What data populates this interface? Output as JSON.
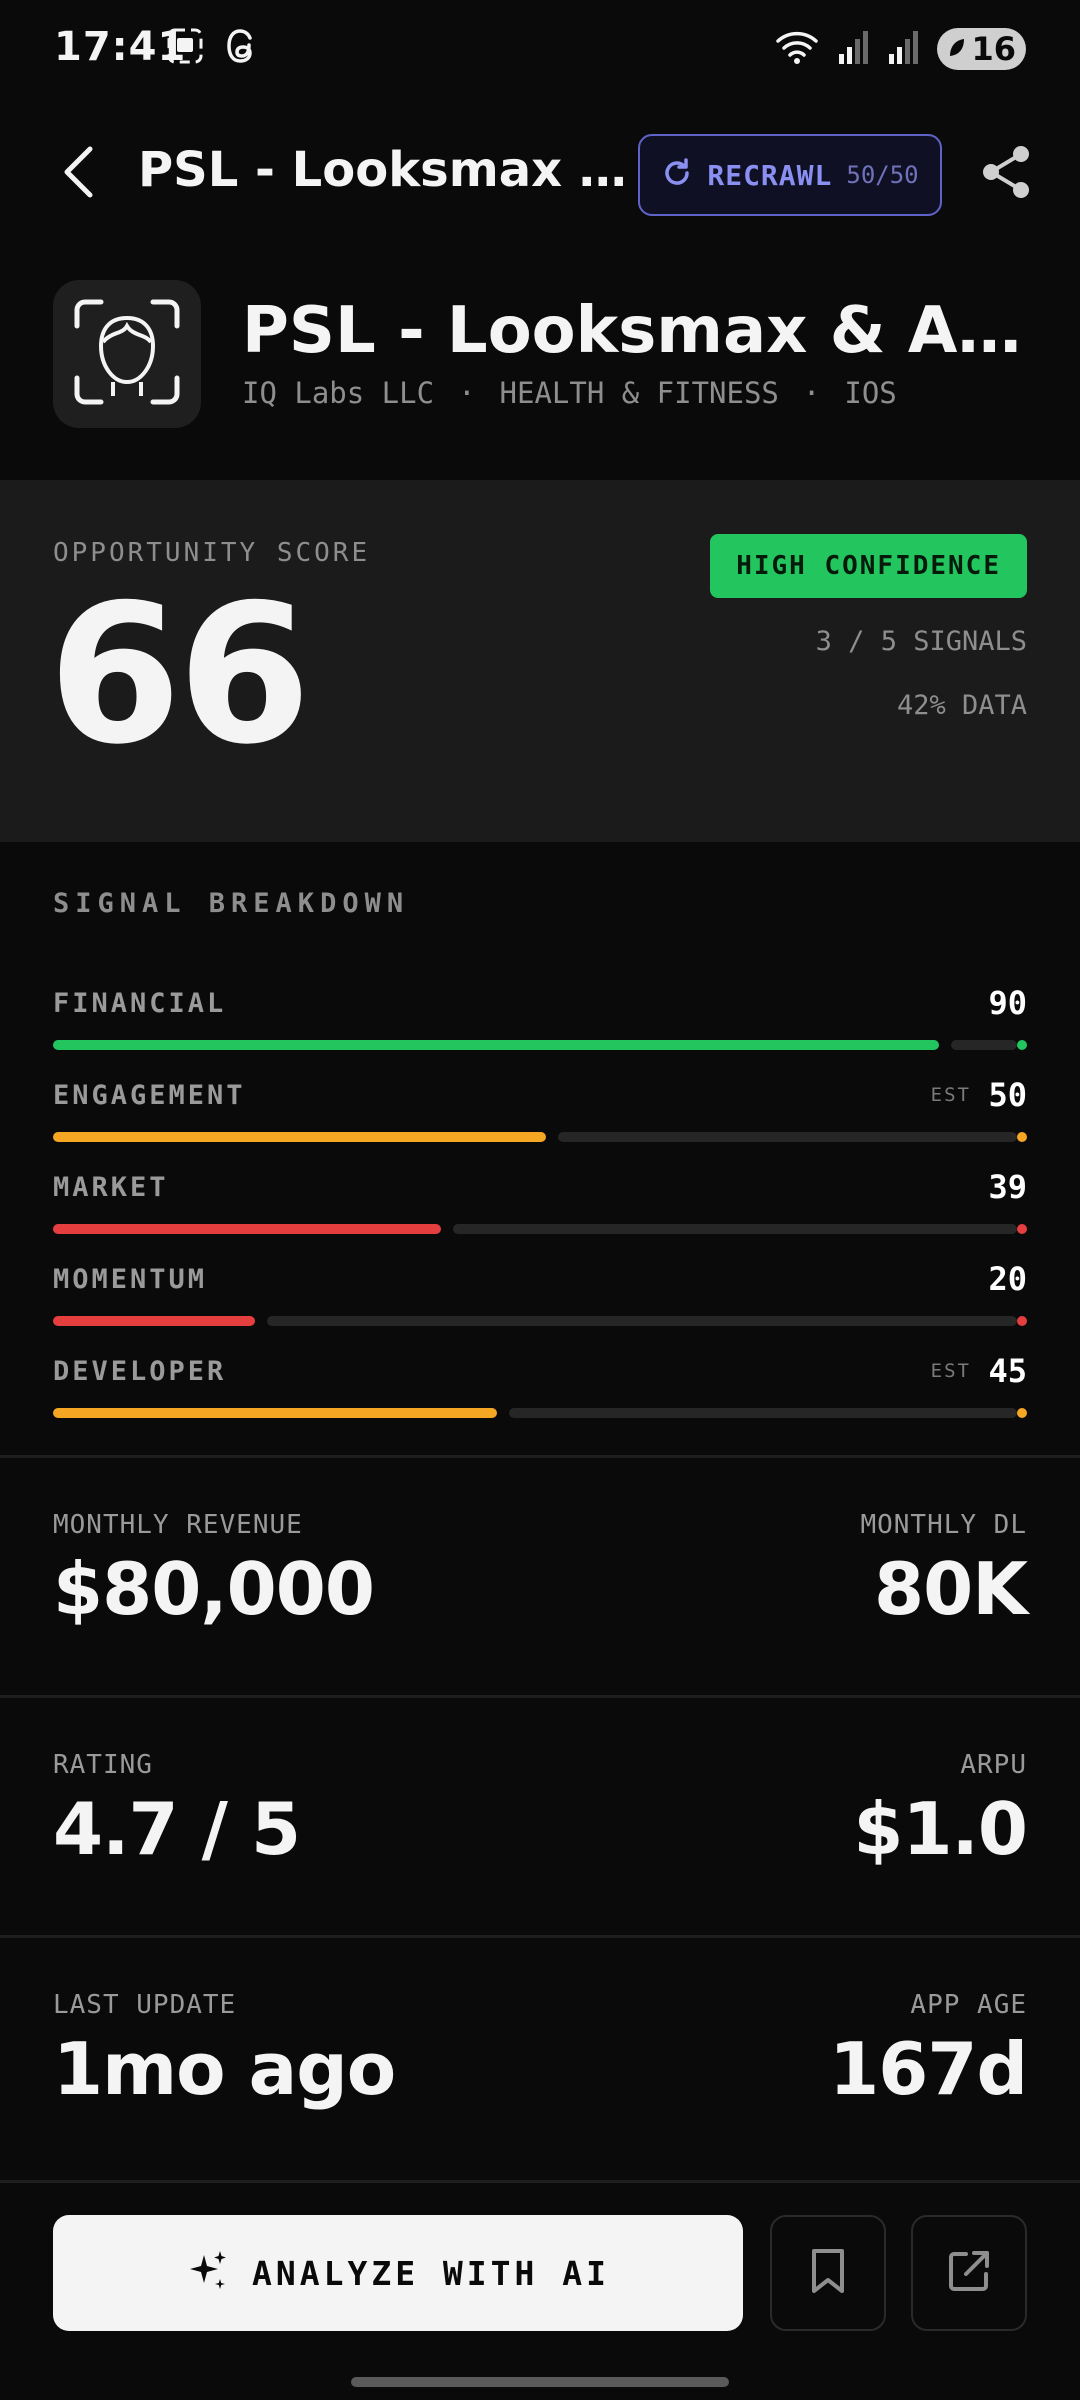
{
  "status_bar": {
    "time": "17:41",
    "battery": "16"
  },
  "app_bar": {
    "title": "PSL - Looksmax & ...",
    "recrawl_label": "RECRAWL",
    "recrawl_count": "50/50"
  },
  "app": {
    "name": "PSL - Looksmax & Asce...",
    "developer": "IQ Labs LLC",
    "separator": "·",
    "category": "HEALTH & FITNESS",
    "platform": "IOS"
  },
  "opportunity": {
    "label": "OPPORTUNITY SCORE",
    "score": "66",
    "confidence": "HIGH CONFIDENCE",
    "signals": "3 / 5 SIGNALS",
    "data": "42% DATA"
  },
  "breakdown": {
    "title": "SIGNAL BREAKDOWN",
    "signals": [
      {
        "name": "FINANCIAL",
        "value": "90",
        "est": "",
        "fraction": 0.91,
        "color": "#22c55e"
      },
      {
        "name": "ENGAGEMENT",
        "value": "50",
        "est": "EST",
        "fraction": 0.506,
        "color": "#f5a623"
      },
      {
        "name": "MARKET",
        "value": "39",
        "est": "",
        "fraction": 0.398,
        "color": "#e53e3e"
      },
      {
        "name": "MOMENTUM",
        "value": "20",
        "est": "",
        "fraction": 0.207,
        "color": "#e53e3e"
      },
      {
        "name": "DEVELOPER",
        "value": "45",
        "est": "EST",
        "fraction": 0.456,
        "color": "#f5a623"
      }
    ]
  },
  "metrics": {
    "monthly_revenue_label": "MONTHLY REVENUE",
    "monthly_revenue": "$80,000",
    "monthly_dl_label": "MONTHLY DL",
    "monthly_dl": "80K",
    "rating_label": "RATING",
    "rating": "4.7 / 5",
    "arpu_label": "ARPU",
    "arpu": "$1.0",
    "last_update_label": "LAST UPDATE",
    "last_update": "1mo ago",
    "app_age_label": "APP AGE",
    "app_age": "167d"
  },
  "actions": {
    "analyze_label": "ANALYZE WITH AI"
  },
  "icons": [
    "gallery-icon",
    "threads-icon",
    "wifi-icon",
    "signal-icon",
    "back-icon",
    "refresh-icon",
    "share-icon",
    "face-scan-icon",
    "sparkle-icon",
    "bookmark-icon",
    "external-link-icon"
  ]
}
